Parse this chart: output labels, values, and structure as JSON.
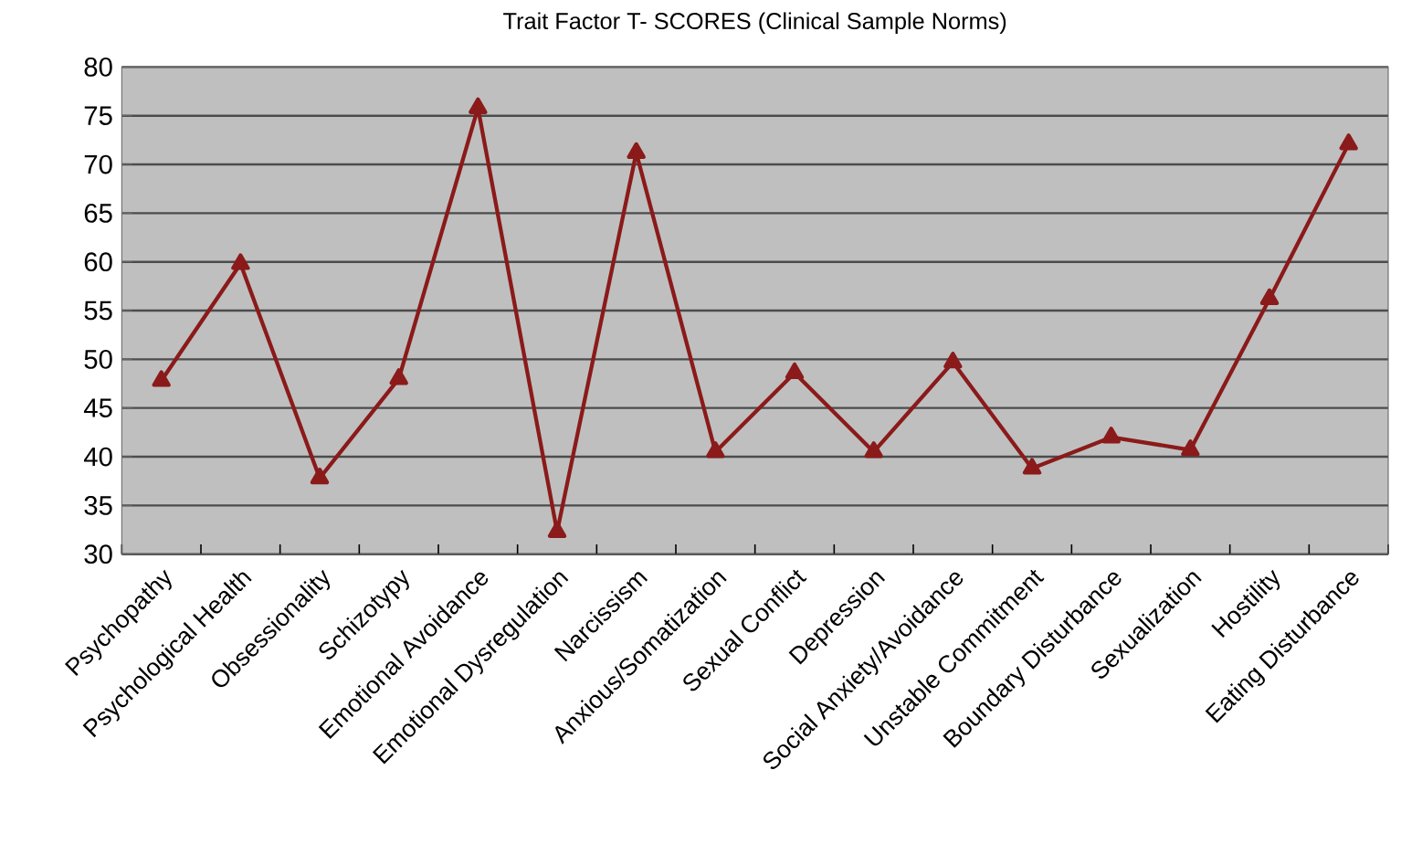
{
  "chart_data": {
    "type": "line",
    "title": "Trait Factor T- SCORES (Clinical Sample Norms)",
    "categories": [
      "Psychopathy",
      "Psychological Health",
      "Obsessionality",
      "Schizotypy",
      "Emotional Avoidance",
      "Emotional Dysregulation",
      "Narcissism",
      "Anxious/Somatization",
      "Sexual Conflict",
      "Depression",
      "Social Anxiety/Avoidance",
      "Unstable Commitment",
      "Boundary Disturbance",
      "Sexualization",
      "Hostility",
      "Eating Disturbance"
    ],
    "series": [
      {
        "color": "#8b1a1a",
        "values": [
          47.8,
          59.8,
          37.8,
          48,
          75.8,
          32.3,
          71.2,
          40.5,
          48.6,
          40.5,
          49.7,
          38.8,
          42,
          40.7,
          56.2,
          72.1
        ]
      }
    ],
    "ylim": [
      30,
      80
    ],
    "yticks": [
      30,
      35,
      40,
      45,
      50,
      55,
      60,
      65,
      70,
      75,
      80
    ],
    "grid": "y",
    "marker": "triangle",
    "line_style": "solid"
  }
}
